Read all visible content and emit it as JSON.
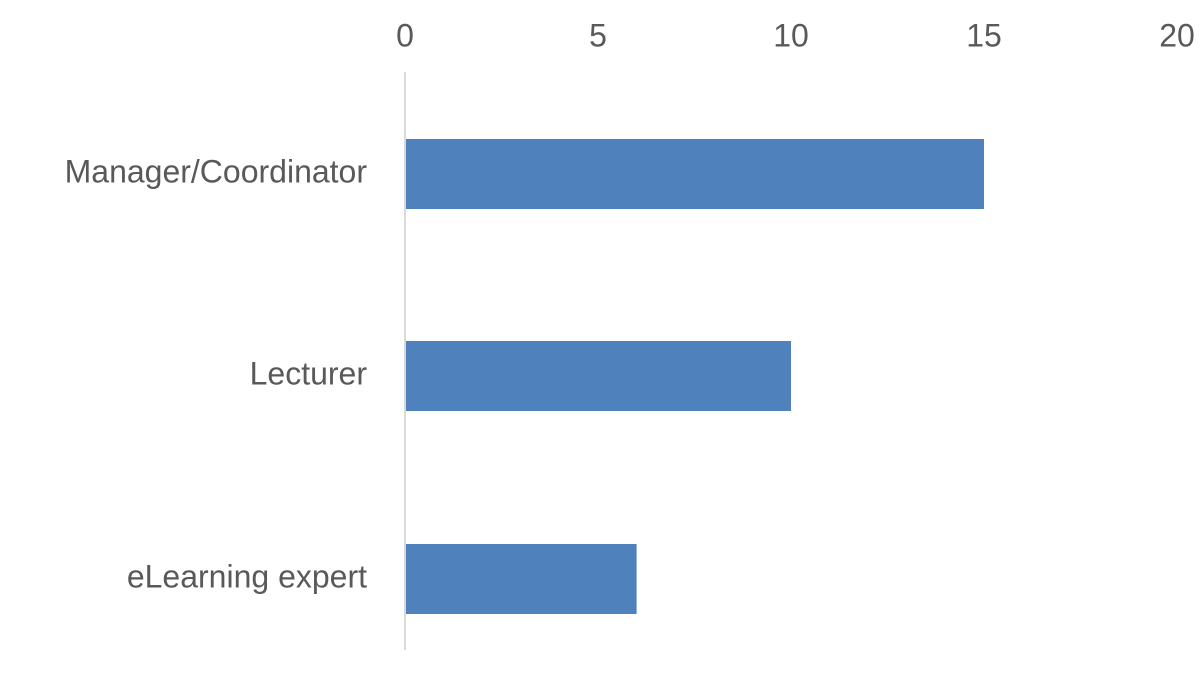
{
  "chart_data": {
    "type": "bar",
    "orientation": "horizontal",
    "categories": [
      "Manager/Coordinator",
      "Lecturer",
      "eLearning expert"
    ],
    "values": [
      15,
      10,
      6
    ],
    "xlim": [
      0,
      20
    ],
    "x_ticks": [
      "0",
      "5",
      "10",
      "15",
      "20"
    ],
    "x_axis_position": "top",
    "grid": false,
    "legend": "none",
    "colors": {
      "bar": "#4f81bd",
      "axis": "#d9d9d9",
      "text": "#595959"
    }
  }
}
